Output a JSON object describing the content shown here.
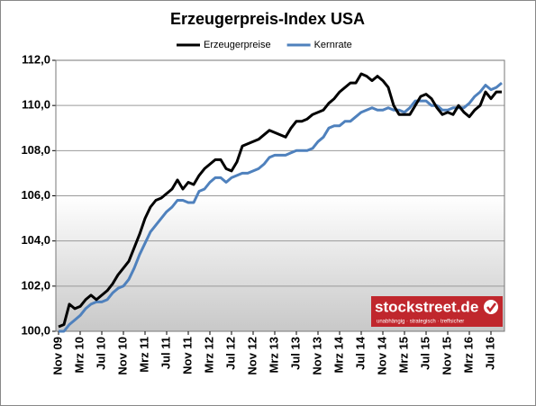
{
  "chart_data": {
    "type": "line",
    "title": "Erzeugerpreis-Index USA",
    "categories": [
      "Nov 09",
      null,
      null,
      null,
      "Mrz 10",
      null,
      null,
      null,
      "Jul 10",
      null,
      null,
      null,
      "Nov 10",
      null,
      null,
      null,
      "Mrz 11",
      null,
      null,
      null,
      "Jul 11",
      null,
      null,
      null,
      "Nov 11",
      null,
      null,
      null,
      "Mrz 12",
      null,
      null,
      null,
      "Jul 12",
      null,
      null,
      null,
      "Nov 12",
      null,
      null,
      null,
      "Mrz 13",
      null,
      null,
      null,
      "Jul 13",
      null,
      null,
      null,
      "Nov 13",
      null,
      null,
      null,
      "Mrz 14",
      null,
      null,
      null,
      "Jul 14",
      null,
      null,
      null,
      "Nov 14",
      null,
      null,
      null,
      "Mrz 15",
      null,
      null,
      null,
      "Jul 15",
      null,
      null,
      null,
      "Nov 15",
      null,
      null,
      null,
      "Mrz 16",
      null,
      null,
      null,
      "Jul 16",
      null,
      null
    ],
    "series": [
      {
        "name": "Erzeugerpreise",
        "color": "#000000",
        "values": [
          100.2,
          100.3,
          101.2,
          101.0,
          101.1,
          101.4,
          101.6,
          101.4,
          101.6,
          101.8,
          102.1,
          102.5,
          102.8,
          103.1,
          103.7,
          104.3,
          105.0,
          105.5,
          105.8,
          105.9,
          106.1,
          106.3,
          106.7,
          106.3,
          106.6,
          106.5,
          106.9,
          107.2,
          107.4,
          107.6,
          107.6,
          107.2,
          107.1,
          107.5,
          108.2,
          108.3,
          108.4,
          108.5,
          108.7,
          108.9,
          108.8,
          108.7,
          108.6,
          109.0,
          109.3,
          109.3,
          109.4,
          109.6,
          109.7,
          109.8,
          110.1,
          110.3,
          110.6,
          110.8,
          111.0,
          111.0,
          111.4,
          111.3,
          111.1,
          111.3,
          111.1,
          110.8,
          110.0,
          109.6,
          109.6,
          109.6,
          110.0,
          110.4,
          110.5,
          110.3,
          109.9,
          109.6,
          109.7,
          109.6,
          110.0,
          109.7,
          109.5,
          109.8,
          110.0,
          110.6,
          110.3,
          110.6,
          110.6
        ]
      },
      {
        "name": "Kernrate",
        "color": "#4f81bd",
        "values": [
          100.0,
          100.0,
          100.3,
          100.5,
          100.7,
          101.0,
          101.2,
          101.3,
          101.3,
          101.4,
          101.7,
          101.9,
          102.0,
          102.3,
          102.8,
          103.4,
          103.9,
          104.4,
          104.7,
          105.0,
          105.3,
          105.5,
          105.8,
          105.8,
          105.7,
          105.7,
          106.2,
          106.3,
          106.6,
          106.8,
          106.8,
          106.6,
          106.8,
          106.9,
          107.0,
          107.0,
          107.1,
          107.2,
          107.4,
          107.7,
          107.8,
          107.8,
          107.8,
          107.9,
          108.0,
          108.0,
          108.0,
          108.1,
          108.4,
          108.6,
          109.0,
          109.1,
          109.1,
          109.3,
          109.3,
          109.5,
          109.7,
          109.8,
          109.9,
          109.8,
          109.8,
          109.9,
          109.8,
          109.8,
          109.7,
          109.9,
          110.2,
          110.2,
          110.2,
          110.0,
          110.0,
          109.8,
          109.8,
          109.9,
          109.9,
          109.9,
          110.1,
          110.4,
          110.6,
          110.9,
          110.7,
          110.8,
          111.0
        ]
      }
    ],
    "ylim": [
      100,
      112
    ],
    "yticks": [
      {
        "value": 100,
        "label": "100,0"
      },
      {
        "value": 102,
        "label": "102,0"
      },
      {
        "value": 104,
        "label": "104,0"
      },
      {
        "value": 106,
        "label": "106,0"
      },
      {
        "value": 108,
        "label": "108,0"
      },
      {
        "value": 110,
        "label": "110,0"
      },
      {
        "value": 112,
        "label": "112,0"
      }
    ],
    "grid": true,
    "legend": "top"
  },
  "logo": {
    "text": "stockstreet.de",
    "tagline": "unabhängig · strategisch · treffsicher"
  }
}
